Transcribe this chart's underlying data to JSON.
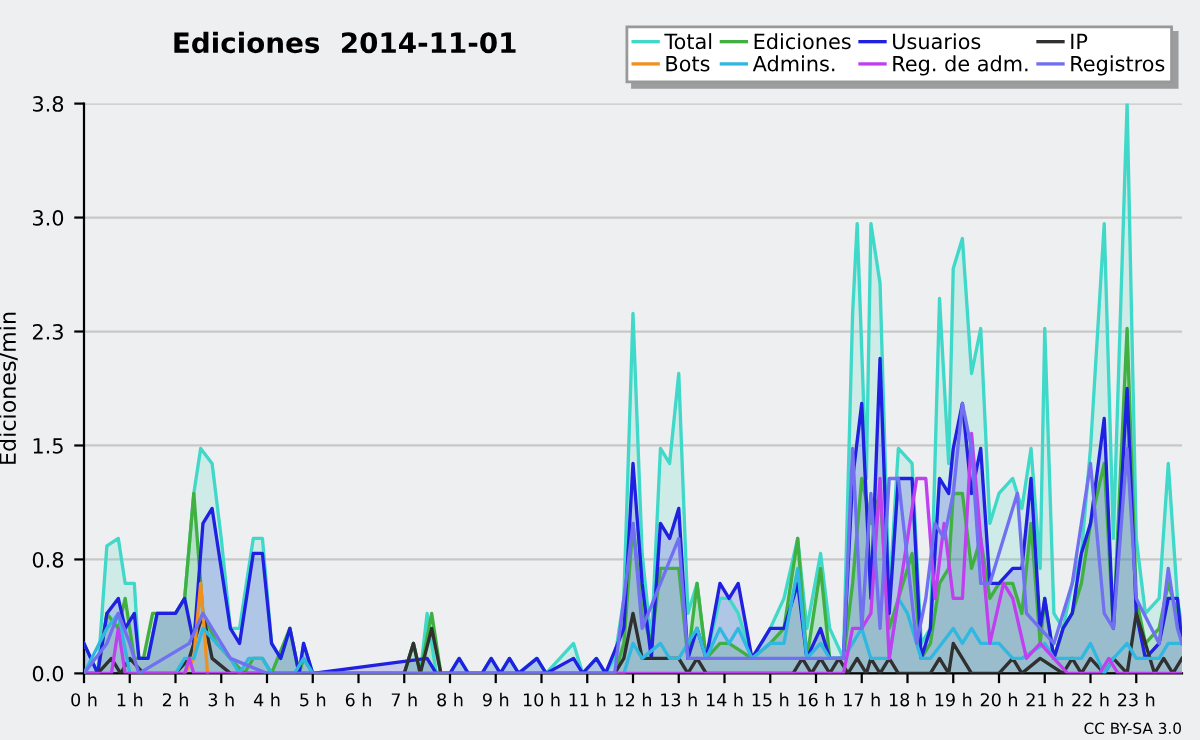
{
  "chart_data": {
    "type": "line",
    "title": "Ediciones  2014-11-01",
    "ylabel": "Ediciones/min",
    "annotations": [
      "CC BY-SA 3.0"
    ],
    "xlim": [
      0,
      24
    ],
    "ylim": [
      0,
      3.8
    ],
    "xticks": [
      {
        "value": 0,
        "label": "0 h"
      },
      {
        "value": 1,
        "label": "1 h"
      },
      {
        "value": 2,
        "label": "2 h"
      },
      {
        "value": 3,
        "label": "3 h"
      },
      {
        "value": 4,
        "label": "4 h"
      },
      {
        "value": 5,
        "label": "5 h"
      },
      {
        "value": 6,
        "label": "6 h"
      },
      {
        "value": 7,
        "label": "7 h"
      },
      {
        "value": 8,
        "label": "8 h"
      },
      {
        "value": 9,
        "label": "9 h"
      },
      {
        "value": 10,
        "label": "10 h"
      },
      {
        "value": 11,
        "label": "11 h"
      },
      {
        "value": 12,
        "label": "12 h"
      },
      {
        "value": 13,
        "label": "13 h"
      },
      {
        "value": 14,
        "label": "14 h"
      },
      {
        "value": 15,
        "label": "15 h"
      },
      {
        "value": 16,
        "label": "16 h"
      },
      {
        "value": 17,
        "label": "17 h"
      },
      {
        "value": 18,
        "label": "18 h"
      },
      {
        "value": 19,
        "label": "19 h"
      },
      {
        "value": 20,
        "label": "20 h"
      },
      {
        "value": 21,
        "label": "21 h"
      },
      {
        "value": 22,
        "label": "22 h"
      },
      {
        "value": 23,
        "label": "23 h"
      }
    ],
    "yticks": [
      {
        "value": 0,
        "label": "0.0"
      },
      {
        "value": 0.76,
        "label": "0.8"
      },
      {
        "value": 1.52,
        "label": "1.5"
      },
      {
        "value": 2.28,
        "label": "2.3"
      },
      {
        "value": 3.04,
        "label": "3.0"
      },
      {
        "value": 3.8,
        "label": "3.8"
      }
    ],
    "grid": "y",
    "legend": "top right",
    "series": [
      {
        "name": "Total",
        "type": "area",
        "color": "#40d8c8",
        "x": [
          0,
          0.3,
          0.5,
          0.75,
          0.9,
          1.1,
          1.2,
          1.4,
          1.6,
          2.0,
          2.2,
          2.4,
          2.55,
          2.8,
          3.0,
          3.2,
          3.4,
          3.7,
          3.9,
          4.1,
          4.3,
          4.5,
          4.7,
          4.8,
          5.0,
          7.0,
          7.2,
          7.35,
          7.5,
          7.7,
          8.0,
          8.2,
          8.4,
          8.7,
          8.9,
          9.1,
          9.3,
          9.5,
          9.9,
          10.1,
          10.7,
          10.9,
          11.2,
          11.4,
          11.6,
          11.8,
          12.0,
          12.2,
          12.4,
          12.6,
          12.8,
          13.0,
          13.2,
          13.4,
          13.6,
          13.9,
          14.1,
          14.3,
          14.6,
          15.0,
          15.3,
          15.6,
          15.8,
          16.1,
          16.3,
          16.6,
          16.8,
          16.9,
          17.1,
          17.2,
          17.4,
          17.6,
          17.8,
          18.1,
          18.3,
          18.5,
          18.7,
          18.9,
          19.0,
          19.2,
          19.4,
          19.6,
          19.8,
          20.0,
          20.3,
          20.5,
          20.7,
          20.9,
          21.0,
          21.2,
          21.4,
          21.6,
          21.8,
          22.0,
          22.3,
          22.5,
          22.8,
          23.0,
          23.2,
          23.5,
          23.7,
          23.9,
          24
        ],
        "values": [
          0.2,
          0,
          0.85,
          0.9,
          0.6,
          0.6,
          0.1,
          0.1,
          0.4,
          0.4,
          0.5,
          1.2,
          1.5,
          1.4,
          0.9,
          0.3,
          0.3,
          0.9,
          0.9,
          0.2,
          0.1,
          0.3,
          0,
          0.2,
          0,
          0,
          0.2,
          0,
          0.4,
          0,
          0,
          0.1,
          0,
          0,
          0.1,
          0,
          0.1,
          0,
          0.1,
          0,
          0.2,
          0,
          0.1,
          0,
          0.1,
          0.5,
          2.4,
          0.8,
          0.2,
          1.5,
          1.4,
          2.0,
          0.4,
          0.6,
          0.1,
          0.5,
          0.5,
          0.4,
          0.1,
          0.3,
          0.5,
          0.9,
          0.3,
          0.8,
          0.3,
          0.1,
          2.4,
          3.0,
          1.3,
          3.0,
          2.6,
          0.5,
          1.5,
          1.4,
          0.2,
          0.3,
          2.5,
          1.4,
          2.7,
          2.9,
          2.0,
          2.3,
          1.0,
          1.2,
          1.3,
          1.1,
          1.5,
          0.7,
          2.3,
          0.4,
          0.3,
          0.6,
          0.8,
          1.5,
          3.0,
          0.9,
          3.8,
          0.9,
          0.4,
          0.5,
          1.4,
          0.5,
          0.3
        ]
      },
      {
        "name": "Ediciones",
        "type": "area",
        "color": "#40b040",
        "x": [
          0,
          0.3,
          0.5,
          0.75,
          0.9,
          1.1,
          1.3,
          1.5,
          2.0,
          2.2,
          2.4,
          2.6,
          2.9,
          3.2,
          3.5,
          3.7,
          3.9,
          4.1,
          4.5,
          4.7,
          4.8,
          5.0,
          7.0,
          7.2,
          7.35,
          7.6,
          7.8,
          11.6,
          11.8,
          12.0,
          12.2,
          12.4,
          12.6,
          13.0,
          13.2,
          13.4,
          13.6,
          13.9,
          14.1,
          14.6,
          15.0,
          15.3,
          15.6,
          15.8,
          16.1,
          16.3,
          16.6,
          16.8,
          17.0,
          17.2,
          17.4,
          17.6,
          17.8,
          18.1,
          18.3,
          18.5,
          18.7,
          18.9,
          19.0,
          19.2,
          19.4,
          19.6,
          19.8,
          20.0,
          20.3,
          20.5,
          20.7,
          20.9,
          21.0,
          21.2,
          21.4,
          21.6,
          21.8,
          22.0,
          22.3,
          22.5,
          22.8,
          23.0,
          23.2,
          23.5,
          23.7,
          23.9,
          24
        ],
        "values": [
          0,
          0,
          0.4,
          0.3,
          0.5,
          0.1,
          0.1,
          0.4,
          0.4,
          0.5,
          1.2,
          0.4,
          0.2,
          0.1,
          0,
          0.1,
          0.1,
          0,
          0.3,
          0,
          0.1,
          0,
          0,
          0.2,
          0,
          0.4,
          0,
          0,
          0.2,
          1.0,
          0.4,
          0.2,
          0.7,
          0.7,
          0.1,
          0.6,
          0.1,
          0.2,
          0.2,
          0.1,
          0.2,
          0.3,
          0.9,
          0.1,
          0.7,
          0.1,
          0.1,
          0.6,
          1.3,
          1.0,
          1.2,
          0.3,
          0.5,
          0.8,
          0.1,
          0.2,
          0.6,
          0.7,
          1.2,
          1.2,
          0.7,
          0.9,
          0.5,
          0.6,
          0.6,
          0.4,
          1.0,
          0.2,
          0.5,
          0.1,
          0.3,
          0.4,
          0.6,
          1.0,
          1.4,
          0.3,
          2.3,
          0.5,
          0.2,
          0.3,
          0.6,
          0.4,
          0.2
        ]
      },
      {
        "name": "Usuarios",
        "type": "area",
        "color": "#2020e0",
        "x": [
          0,
          0.3,
          0.5,
          0.75,
          0.9,
          1.1,
          1.2,
          1.4,
          1.6,
          2.0,
          2.2,
          2.4,
          2.6,
          2.8,
          3.0,
          3.2,
          3.4,
          3.7,
          3.9,
          4.1,
          4.3,
          4.5,
          4.7,
          4.8,
          5.0,
          7.5,
          7.7,
          8.0,
          8.2,
          8.4,
          8.7,
          8.9,
          9.1,
          9.3,
          9.5,
          9.9,
          10.1,
          10.7,
          10.9,
          11.2,
          11.4,
          11.8,
          12.0,
          12.2,
          12.4,
          12.6,
          12.8,
          13.0,
          13.2,
          13.4,
          13.6,
          13.9,
          14.1,
          14.3,
          14.6,
          15.0,
          15.3,
          15.6,
          15.8,
          16.1,
          16.3,
          16.6,
          16.8,
          17.0,
          17.2,
          17.4,
          17.6,
          17.8,
          18.1,
          18.3,
          18.5,
          18.7,
          18.9,
          19.0,
          19.2,
          19.4,
          19.6,
          19.8,
          20.0,
          20.3,
          20.5,
          20.7,
          20.9,
          21.0,
          21.2,
          21.4,
          21.6,
          21.8,
          22.0,
          22.3,
          22.5,
          22.8,
          23.0,
          23.2,
          23.5,
          23.7,
          23.9,
          24
        ],
        "values": [
          0.2,
          0,
          0.4,
          0.5,
          0.3,
          0.4,
          0.1,
          0.1,
          0.4,
          0.4,
          0.5,
          0.2,
          1.0,
          1.1,
          0.7,
          0.3,
          0.2,
          0.8,
          0.8,
          0.2,
          0.1,
          0.3,
          0,
          0.2,
          0,
          0.1,
          0,
          0,
          0.1,
          0,
          0,
          0.1,
          0,
          0.1,
          0,
          0.1,
          0,
          0.1,
          0,
          0.1,
          0,
          0.3,
          1.4,
          0.6,
          0.1,
          1.0,
          0.9,
          1.1,
          0.1,
          0.3,
          0.1,
          0.6,
          0.5,
          0.6,
          0.1,
          0.3,
          0.3,
          0.6,
          0.1,
          0.3,
          0.1,
          0.1,
          1.3,
          1.8,
          0.5,
          2.1,
          0.4,
          1.3,
          1.3,
          0.1,
          0.3,
          1.3,
          1.2,
          1.5,
          1.8,
          1.2,
          1.5,
          0.6,
          0.6,
          0.7,
          0.7,
          1.3,
          0.3,
          0.5,
          0.1,
          0.3,
          0.4,
          0.8,
          1.0,
          1.7,
          0.3,
          1.9,
          0.4,
          0.1,
          0.2,
          0.5,
          0.5,
          0.2
        ]
      },
      {
        "name": "IP",
        "color": "#303030",
        "x": [
          0,
          0.3,
          0.6,
          0.8,
          1.0,
          1.3,
          1.6,
          2.0,
          2.3,
          2.6,
          2.8,
          3.2,
          7.0,
          7.2,
          7.35,
          7.6,
          7.8,
          11.6,
          11.8,
          12.0,
          12.2,
          12.6,
          13.0,
          13.2,
          13.4,
          13.6,
          15.5,
          15.7,
          15.9,
          16.1,
          16.3,
          16.5,
          16.7,
          16.9,
          17.1,
          17.2,
          17.4,
          17.6,
          17.8,
          18.5,
          18.7,
          18.9,
          19.0,
          19.2,
          19.4,
          20.0,
          20.3,
          20.5,
          20.9,
          21.4,
          21.6,
          21.8,
          22.0,
          22.3,
          22.5,
          22.8,
          23.0,
          23.4,
          23.6,
          23.8,
          24
        ],
        "values": [
          0,
          0,
          0.1,
          0,
          0.1,
          0,
          0,
          0,
          0.1,
          0.4,
          0.1,
          0,
          0,
          0.2,
          0,
          0.3,
          0,
          0,
          0.1,
          0.4,
          0.1,
          0.1,
          0.1,
          0,
          0.1,
          0,
          0,
          0.1,
          0,
          0.1,
          0,
          0.1,
          0,
          0.1,
          0,
          0.1,
          0,
          0.1,
          0,
          0,
          0.1,
          0,
          0.2,
          0.1,
          0,
          0,
          0.1,
          0,
          0.1,
          0,
          0.1,
          0,
          0.1,
          0,
          0.1,
          0,
          0.4,
          0,
          0.1,
          0,
          0.1
        ]
      },
      {
        "name": "Bots",
        "color": "#f09020",
        "x": [
          2.2,
          2.4,
          2.55,
          2.7
        ],
        "values": [
          0,
          0.1,
          0.6,
          0
        ]
      },
      {
        "name": "Admins.",
        "color": "#30b8e0",
        "x": [
          0,
          0.5,
          0.75,
          1.0,
          2.0,
          2.2,
          2.4,
          2.6,
          2.9,
          3.2,
          3.4,
          3.6,
          3.9,
          4.1,
          4.6,
          4.8,
          5.0,
          11.8,
          12.0,
          12.2,
          12.6,
          12.8,
          13.0,
          13.4,
          13.6,
          13.9,
          14.1,
          14.3,
          14.6,
          15.0,
          15.3,
          15.6,
          15.8,
          16.1,
          16.3,
          16.6,
          17.0,
          17.2,
          17.6,
          17.8,
          18.0,
          18.3,
          18.5,
          19.0,
          19.2,
          19.4,
          19.6,
          20.0,
          20.3,
          20.5,
          21.0,
          21.2,
          21.4,
          21.8,
          22.0,
          22.3,
          22.5,
          22.8,
          23.0,
          23.5,
          23.7,
          24
        ],
        "values": [
          0,
          0.3,
          0.4,
          0,
          0,
          0.1,
          0.1,
          0.3,
          0.2,
          0.1,
          0,
          0.1,
          0.1,
          0,
          0,
          0.1,
          0,
          0,
          0.2,
          0.1,
          0.2,
          0.1,
          0.1,
          0.3,
          0.1,
          0.3,
          0.2,
          0.3,
          0.1,
          0.2,
          0.2,
          0.7,
          0.1,
          0.2,
          0.1,
          0.1,
          0.3,
          0.1,
          0.1,
          0.5,
          0.4,
          0.1,
          0.1,
          0.3,
          0.2,
          0.3,
          0.2,
          0.2,
          0.1,
          0.1,
          0.2,
          0.1,
          0.1,
          0.1,
          0.2,
          0,
          0.1,
          0.2,
          0.1,
          0.1,
          0.2,
          0.2
        ]
      },
      {
        "name": "Reg. de adm.",
        "color": "#c040f0",
        "x": [
          0,
          0.6,
          0.75,
          0.9,
          1.1,
          2.2,
          2.3,
          2.4,
          16.6,
          16.8,
          17.0,
          17.2,
          17.4,
          17.6,
          18.2,
          18.4,
          18.6,
          18.8,
          19.0,
          19.2,
          19.4,
          19.6,
          19.8,
          20.1,
          20.3,
          20.6,
          20.9,
          21.2,
          21.5,
          22.2,
          22.4,
          22.6,
          24
        ],
        "values": [
          0,
          0,
          0.3,
          0,
          0,
          0,
          0.1,
          0,
          0,
          0.3,
          0.3,
          0.4,
          1.3,
          0.1,
          1.3,
          1.3,
          0.5,
          1.0,
          0.5,
          0.5,
          1.6,
          0.9,
          0.2,
          0.6,
          0.5,
          0.1,
          0.2,
          0.1,
          0,
          0,
          0.1,
          0,
          0
        ]
      },
      {
        "name": "Registros",
        "color": "#7070f0",
        "x": [
          0,
          0.5,
          0.75,
          1.0,
          1.2,
          2.3,
          2.6,
          2.8,
          3.0,
          3.2,
          4.0,
          11.6,
          12.0,
          12.2,
          12.6,
          13.0,
          13.2,
          16.6,
          16.8,
          17.0,
          17.2,
          17.4,
          17.6,
          17.8,
          18.2,
          18.4,
          18.6,
          18.8,
          19.0,
          19.2,
          19.4,
          19.6,
          19.8,
          20.4,
          20.6,
          21.2,
          21.6,
          22.0,
          22.3,
          22.5,
          22.8,
          23.0,
          23.5,
          23.7,
          23.9,
          24
        ],
        "values": [
          0,
          0.2,
          0.4,
          0.2,
          0,
          0.2,
          0.4,
          0.3,
          0.2,
          0.1,
          0,
          0,
          1.0,
          0.3,
          0.6,
          0.9,
          0.1,
          0.1,
          1.5,
          0.3,
          1.2,
          0.3,
          1.3,
          1.3,
          0.2,
          0.5,
          1.0,
          0.9,
          1.2,
          1.8,
          1.5,
          0.6,
          0.6,
          1.2,
          0.4,
          0.2,
          0.6,
          1.4,
          0.4,
          0.3,
          1.5,
          0.5,
          0.2,
          0.7,
          0.3,
          0.2
        ]
      }
    ]
  }
}
